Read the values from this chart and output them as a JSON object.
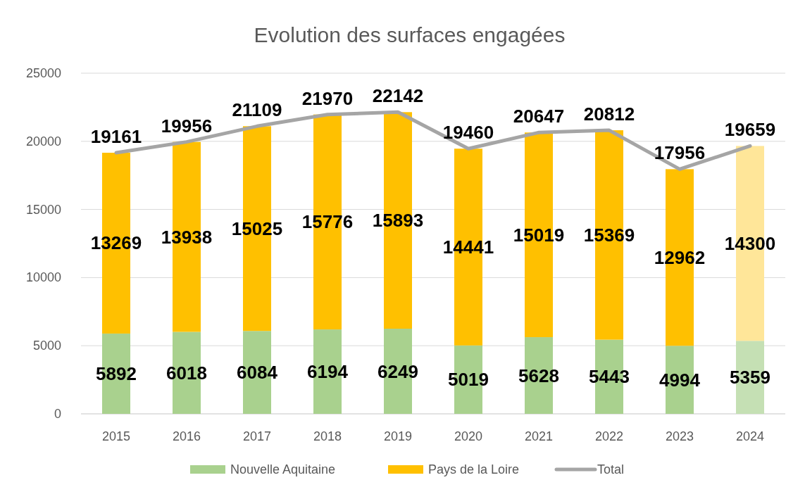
{
  "chart_data": {
    "type": "bar",
    "title": "Evolution des surfaces engagées",
    "categories": [
      "2015",
      "2016",
      "2017",
      "2018",
      "2019",
      "2020",
      "2021",
      "2022",
      "2023",
      "2024"
    ],
    "stacked": true,
    "series": [
      {
        "name": "Nouvelle Aquitaine",
        "color": "#a9d18e",
        "colors": [
          "#a9d18e",
          "#a9d18e",
          "#a9d18e",
          "#a9d18e",
          "#a9d18e",
          "#a9d18e",
          "#a9d18e",
          "#a9d18e",
          "#a9d18e",
          "#c5e0b4"
        ],
        "values": [
          5892,
          6018,
          6084,
          6194,
          6249,
          5019,
          5628,
          5443,
          4994,
          5359
        ]
      },
      {
        "name": "Pays de la Loire",
        "color": "#ffc000",
        "colors": [
          "#ffc000",
          "#ffc000",
          "#ffc000",
          "#ffc000",
          "#ffc000",
          "#ffc000",
          "#ffc000",
          "#ffc000",
          "#ffc000",
          "#ffe699"
        ],
        "values": [
          13269,
          13938,
          15025,
          15776,
          15893,
          14441,
          15019,
          15369,
          12962,
          14300
        ]
      },
      {
        "name": "Total",
        "type": "line",
        "color": "#a5a5a5",
        "values": [
          19161,
          19956,
          21109,
          21970,
          22142,
          19460,
          20647,
          20812,
          17956,
          19659
        ]
      }
    ],
    "ylim": [
      0,
      25000
    ],
    "yticks": [
      0,
      5000,
      10000,
      15000,
      20000,
      25000
    ],
    "grid": "y",
    "legend": "bottom",
    "data_labels": true,
    "marker": "none"
  }
}
